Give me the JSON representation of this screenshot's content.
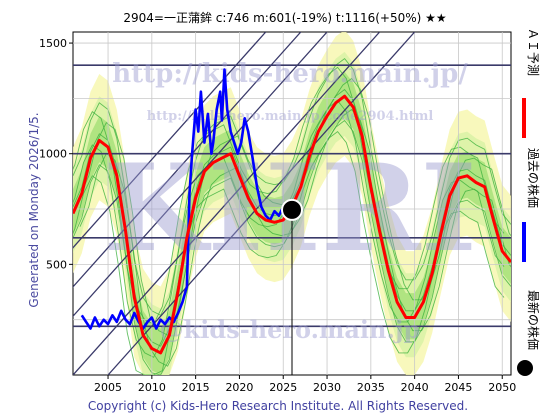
{
  "header": {
    "title": "2904=一正蒲鉾 c:746 m:601(-19%) t:1116(+50%) ★★"
  },
  "footer": {
    "copyright": "Copyright (c) Kids-Hero Research Institute. All Rights Reserved."
  },
  "side": {
    "generated": "Generated on Monday 2026/1/5."
  },
  "watermark": {
    "url1": "http://kids-hero.main.jp/",
    "url2": "http://kids-hero.main.jp/code2904.html",
    "logo": "KHRI",
    "url3": "@kids-hero.main.jp"
  },
  "legend": [
    {
      "label": "ＡＩ予測",
      "color": "#ff0000"
    },
    {
      "label": "過去の株価",
      "color": "#0000ff"
    },
    {
      "label": "最新の株価",
      "color": "#000000"
    }
  ],
  "chart_data": {
    "type": "line",
    "xlim": [
      2001,
      2051
    ],
    "ylim": [
      0,
      1550
    ],
    "x_ticks": [
      2005,
      2010,
      2015,
      2020,
      2025,
      2030,
      2035,
      2040,
      2045,
      2050
    ],
    "y_ticks": [
      500,
      1000,
      1500
    ],
    "grid": true,
    "horizontal_lines": [
      220,
      620,
      1000,
      1400
    ],
    "latest_point": {
      "x": 2026,
      "y": 746
    },
    "series": [
      {
        "name": "過去の株価",
        "color": "#0000ff",
        "points": [
          [
            2002,
            270
          ],
          [
            2002.5,
            240
          ],
          [
            2003,
            210
          ],
          [
            2003.5,
            260
          ],
          [
            2004,
            220
          ],
          [
            2004.5,
            250
          ],
          [
            2005,
            230
          ],
          [
            2005.5,
            270
          ],
          [
            2006,
            240
          ],
          [
            2006.5,
            290
          ],
          [
            2007,
            250
          ],
          [
            2007.5,
            230
          ],
          [
            2008,
            280
          ],
          [
            2008.5,
            240
          ],
          [
            2009,
            210
          ],
          [
            2009.5,
            240
          ],
          [
            2010,
            260
          ],
          [
            2010.5,
            210
          ],
          [
            2011,
            250
          ],
          [
            2011.5,
            230
          ],
          [
            2012,
            260
          ],
          [
            2012.5,
            240
          ],
          [
            2013,
            280
          ],
          [
            2013.5,
            330
          ],
          [
            2014,
            400
          ],
          [
            2014.3,
            820
          ],
          [
            2014.6,
            1000
          ],
          [
            2015,
            1200
          ],
          [
            2015.3,
            1100
          ],
          [
            2015.6,
            1280
          ],
          [
            2016,
            1050
          ],
          [
            2016.4,
            1180
          ],
          [
            2016.8,
            1000
          ],
          [
            2017,
            1050
          ],
          [
            2017.4,
            1200
          ],
          [
            2017.8,
            1280
          ],
          [
            2018,
            1150
          ],
          [
            2018.3,
            1380
          ],
          [
            2018.6,
            1200
          ],
          [
            2019,
            1100
          ],
          [
            2019.4,
            1050
          ],
          [
            2019.8,
            1000
          ],
          [
            2020.2,
            1050
          ],
          [
            2020.6,
            1160
          ],
          [
            2021,
            1100
          ],
          [
            2021.5,
            980
          ],
          [
            2022,
            850
          ],
          [
            2022.5,
            760
          ],
          [
            2023,
            720
          ],
          [
            2023.5,
            700
          ],
          [
            2024,
            740
          ],
          [
            2024.5,
            720
          ],
          [
            2025,
            760
          ],
          [
            2025.5,
            740
          ],
          [
            2026,
            746
          ]
        ]
      },
      {
        "name": "ＡＩ予測",
        "color": "#ff0000",
        "points": [
          [
            2001,
            730
          ],
          [
            2002,
            820
          ],
          [
            2003,
            980
          ],
          [
            2004,
            1060
          ],
          [
            2005,
            1030
          ],
          [
            2006,
            900
          ],
          [
            2007,
            650
          ],
          [
            2008,
            350
          ],
          [
            2009,
            180
          ],
          [
            2010,
            120
          ],
          [
            2011,
            100
          ],
          [
            2012,
            180
          ],
          [
            2013,
            380
          ],
          [
            2014,
            620
          ],
          [
            2015,
            800
          ],
          [
            2016,
            920
          ],
          [
            2017,
            960
          ],
          [
            2018,
            980
          ],
          [
            2019,
            1000
          ],
          [
            2020,
            900
          ],
          [
            2021,
            800
          ],
          [
            2022,
            730
          ],
          [
            2023,
            700
          ],
          [
            2024,
            690
          ],
          [
            2025,
            700
          ],
          [
            2026,
            760
          ],
          [
            2027,
            850
          ],
          [
            2028,
            990
          ],
          [
            2029,
            1100
          ],
          [
            2030,
            1170
          ],
          [
            2031,
            1230
          ],
          [
            2032,
            1260
          ],
          [
            2033,
            1210
          ],
          [
            2034,
            1080
          ],
          [
            2035,
            850
          ],
          [
            2036,
            650
          ],
          [
            2037,
            470
          ],
          [
            2038,
            330
          ],
          [
            2039,
            260
          ],
          [
            2040,
            260
          ],
          [
            2041,
            330
          ],
          [
            2042,
            460
          ],
          [
            2043,
            640
          ],
          [
            2044,
            810
          ],
          [
            2045,
            890
          ],
          [
            2046,
            900
          ],
          [
            2047,
            870
          ],
          [
            2048,
            850
          ],
          [
            2049,
            700
          ],
          [
            2050,
            560
          ],
          [
            2051,
            510
          ]
        ]
      }
    ]
  }
}
